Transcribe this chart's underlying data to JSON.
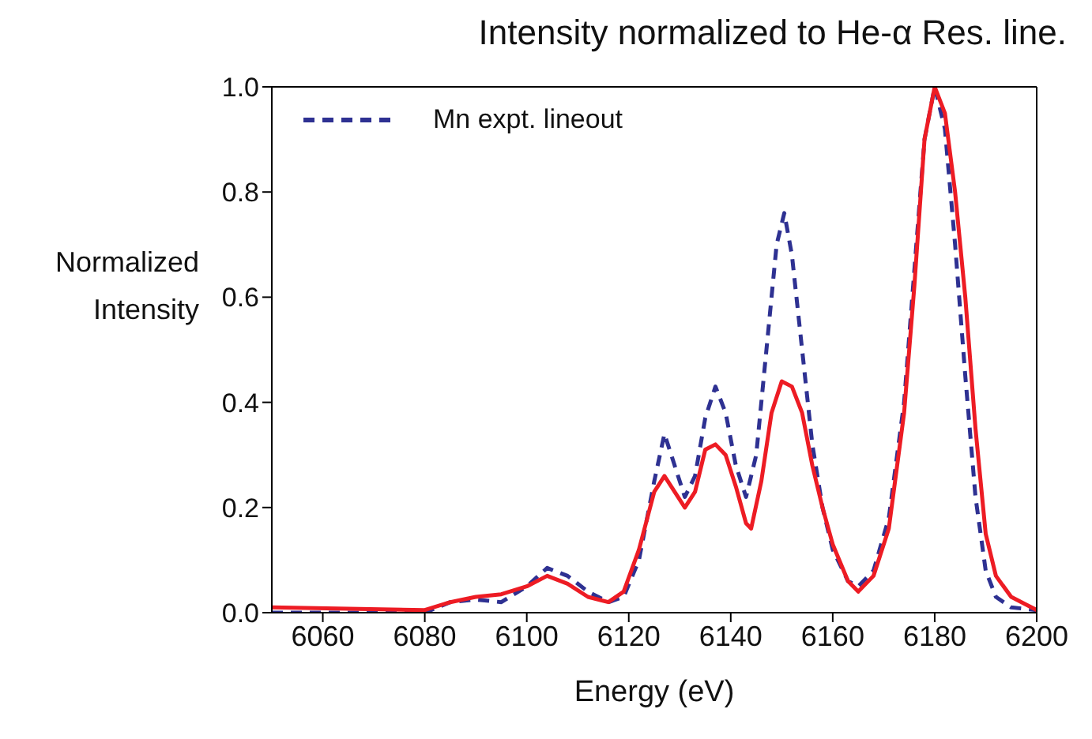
{
  "chart_data": {
    "type": "line",
    "title": "Intensity normalized to He-α Res. line.",
    "xlabel": "Energy (eV)",
    "ylabel": "Normalized\nIntensity",
    "xlim": [
      6050,
      6200
    ],
    "xticks": [
      6060,
      6080,
      6100,
      6120,
      6140,
      6160,
      6180,
      6200
    ],
    "ylim": [
      0,
      1
    ],
    "yticks": [
      {
        "value": 0,
        "label": "0.0"
      },
      0.2,
      0.4,
      0.6,
      0.8,
      {
        "value": 1,
        "label": "1.0"
      }
    ],
    "legend": "top left",
    "marker": "none",
    "series": [
      {
        "name": "Mn expt. lineout",
        "color": "#2e3192",
        "line_style": "dashed",
        "x": [
          6050,
          6080,
          6085,
          6090,
          6095,
          6100,
          6104,
          6108,
          6112,
          6116,
          6119,
          6122,
          6125,
          6127,
          6129,
          6131,
          6133,
          6135,
          6137,
          6139,
          6141,
          6143,
          6145,
          6147,
          6149,
          6150.5,
          6152,
          6154,
          6156,
          6158,
          6160,
          6163,
          6165,
          6168,
          6171,
          6174,
          6176,
          6178,
          6180,
          6182,
          6184,
          6186,
          6188,
          6190,
          6192,
          6195,
          6200
        ],
        "values": [
          0,
          0,
          0.02,
          0.025,
          0.02,
          0.05,
          0.085,
          0.07,
          0.04,
          0.02,
          0.03,
          0.1,
          0.25,
          0.34,
          0.28,
          0.22,
          0.26,
          0.37,
          0.43,
          0.38,
          0.28,
          0.22,
          0.3,
          0.5,
          0.7,
          0.76,
          0.68,
          0.5,
          0.32,
          0.2,
          0.12,
          0.06,
          0.05,
          0.08,
          0.18,
          0.4,
          0.65,
          0.9,
          1.0,
          0.92,
          0.7,
          0.45,
          0.22,
          0.08,
          0.03,
          0.01,
          0.005
        ]
      },
      {
        "color": "#ed1c24",
        "line_style": "solid",
        "x": [
          6050,
          6080,
          6085,
          6090,
          6095,
          6100,
          6104,
          6108,
          6112,
          6116,
          6119,
          6122,
          6125,
          6127,
          6129,
          6131,
          6133,
          6135,
          6137,
          6139,
          6141,
          6143,
          6144,
          6146,
          6148,
          6150,
          6152,
          6154,
          6156,
          6158,
          6160,
          6163,
          6165,
          6168,
          6171,
          6174,
          6176,
          6178,
          6180,
          6182,
          6184,
          6186,
          6188,
          6190,
          6192,
          6195,
          6200
        ],
        "values": [
          0.01,
          0.005,
          0.02,
          0.03,
          0.035,
          0.05,
          0.07,
          0.055,
          0.03,
          0.02,
          0.04,
          0.12,
          0.23,
          0.26,
          0.23,
          0.2,
          0.23,
          0.31,
          0.32,
          0.3,
          0.24,
          0.17,
          0.16,
          0.25,
          0.38,
          0.44,
          0.43,
          0.38,
          0.28,
          0.2,
          0.13,
          0.06,
          0.04,
          0.07,
          0.16,
          0.38,
          0.62,
          0.9,
          1.0,
          0.95,
          0.8,
          0.6,
          0.35,
          0.15,
          0.07,
          0.03,
          0.005
        ]
      }
    ]
  }
}
